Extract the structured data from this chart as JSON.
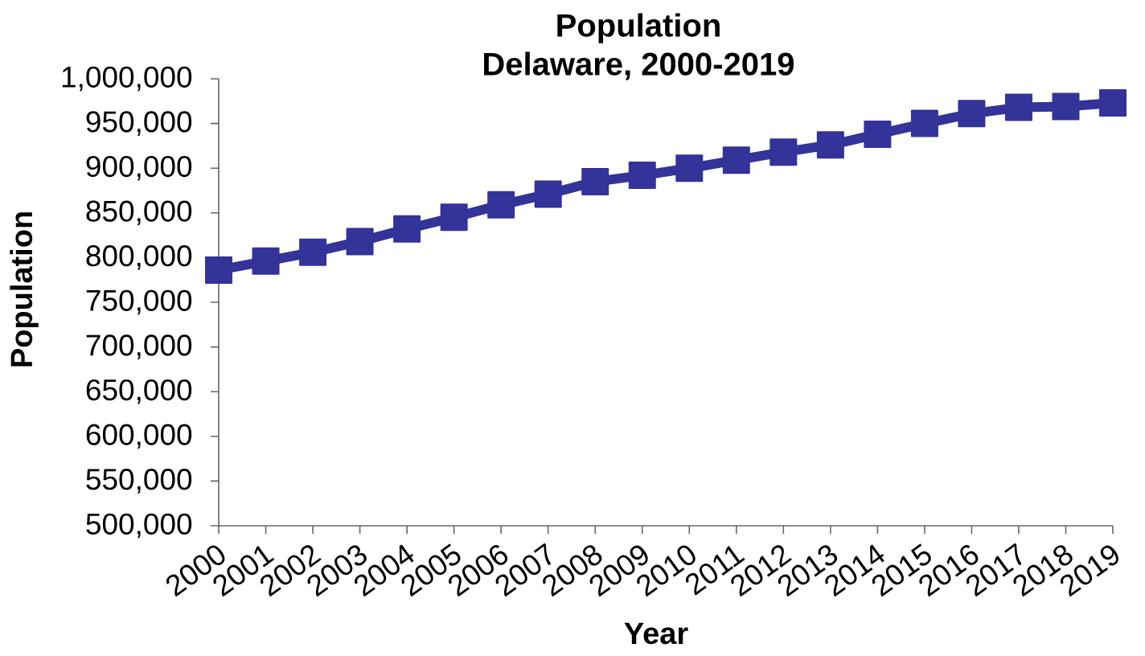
{
  "chart_data": {
    "type": "line",
    "title": "Population",
    "subtitle": "Delaware, 2000-2019",
    "xlabel": "Year",
    "ylabel": "Population",
    "x": [
      2000,
      2001,
      2002,
      2003,
      2004,
      2005,
      2006,
      2007,
      2008,
      2009,
      2010,
      2011,
      2012,
      2013,
      2014,
      2015,
      2016,
      2017,
      2018,
      2019
    ],
    "series": [
      {
        "color": "#333399",
        "values": [
          786000,
          796000,
          806000,
          818000,
          832000,
          845000,
          859000,
          871000,
          885000,
          892000,
          900000,
          909000,
          918000,
          926000,
          938000,
          950000,
          961000,
          968000,
          969000,
          973000
        ]
      }
    ],
    "xlim": [
      2000,
      2019
    ],
    "xticks": [
      2000,
      2001,
      2002,
      2003,
      2004,
      2005,
      2006,
      2007,
      2008,
      2009,
      2010,
      2011,
      2012,
      2013,
      2014,
      2015,
      2016,
      2017,
      2018,
      2019
    ],
    "ylim": [
      500000,
      1000000
    ],
    "yticks": [
      {
        "value": 500000,
        "label": "500,000"
      },
      {
        "value": 550000,
        "label": "550,000"
      },
      {
        "value": 600000,
        "label": "600,000"
      },
      {
        "value": 650000,
        "label": "650,000"
      },
      {
        "value": 700000,
        "label": "700,000"
      },
      {
        "value": 750000,
        "label": "750,000"
      },
      {
        "value": 800000,
        "label": "800,000"
      },
      {
        "value": 850000,
        "label": "850,000"
      },
      {
        "value": 900000,
        "label": "900,000"
      },
      {
        "value": 950000,
        "label": "950,000"
      },
      {
        "value": 1000000,
        "label": "1,000,000"
      }
    ],
    "grid": false,
    "marker": "square",
    "line_style": "solid"
  }
}
